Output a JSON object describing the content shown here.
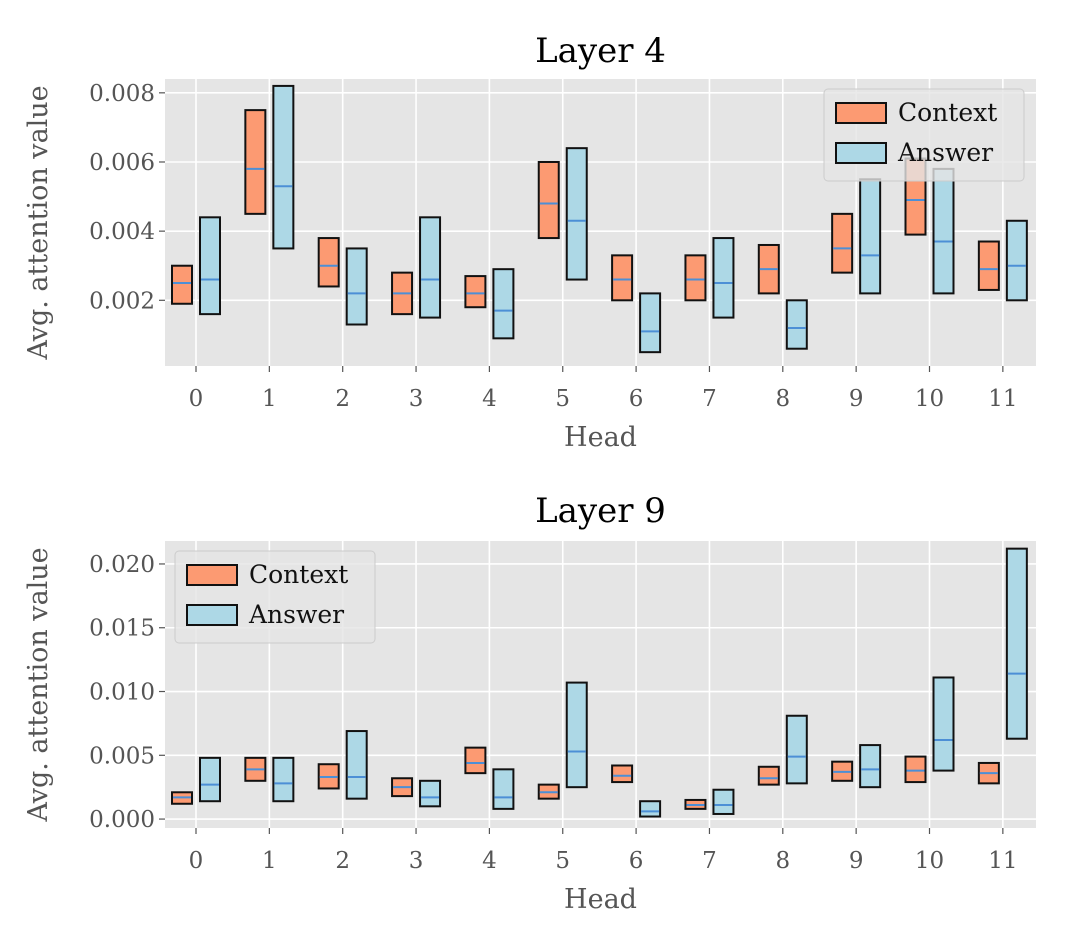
{
  "colors": {
    "context": "#fc9a72",
    "answer": "#add8e6",
    "median": "#4c8fd6",
    "edge": "#111111",
    "panel_bg": "#e5e5e5"
  },
  "chart_data": [
    {
      "type": "box",
      "title": "Layer 4",
      "xlabel": "Head",
      "ylabel": "Avg. attention value",
      "categories": [
        "0",
        "1",
        "2",
        "3",
        "4",
        "5",
        "6",
        "7",
        "8",
        "9",
        "10",
        "11"
      ],
      "ylim": [
        0.0001,
        0.0084
      ],
      "yticks": [
        0.002,
        0.004,
        0.006,
        0.008
      ],
      "ytick_labels": [
        "0.002",
        "0.004",
        "0.006",
        "0.008"
      ],
      "legend": {
        "position": "top-right",
        "labels": [
          "Context",
          "Answer"
        ]
      },
      "series": [
        {
          "name": "Context",
          "low": [
            0.0019,
            0.0045,
            0.0024,
            0.0016,
            0.0018,
            0.0038,
            0.002,
            0.002,
            0.0022,
            0.0028,
            0.0039,
            0.0023
          ],
          "high": [
            0.003,
            0.0075,
            0.0038,
            0.0028,
            0.0027,
            0.006,
            0.0033,
            0.0033,
            0.0036,
            0.0045,
            0.0061,
            0.0037
          ],
          "median": [
            0.0025,
            0.0058,
            0.003,
            0.0022,
            0.0022,
            0.0048,
            0.0026,
            0.0026,
            0.0029,
            0.0035,
            0.0049,
            0.0029
          ]
        },
        {
          "name": "Answer",
          "low": [
            0.0016,
            0.0035,
            0.0013,
            0.0015,
            0.0009,
            0.0026,
            0.0005,
            0.0015,
            0.0006,
            0.0022,
            0.0022,
            0.002
          ],
          "high": [
            0.0044,
            0.0082,
            0.0035,
            0.0044,
            0.0029,
            0.0064,
            0.0022,
            0.0038,
            0.002,
            0.0055,
            0.0058,
            0.0043
          ],
          "median": [
            0.0026,
            0.0053,
            0.0022,
            0.0026,
            0.0017,
            0.0043,
            0.0011,
            0.0025,
            0.0012,
            0.0033,
            0.0037,
            0.003
          ]
        }
      ]
    },
    {
      "type": "box",
      "title": "Layer 9",
      "xlabel": "Head",
      "ylabel": "Avg. attention value",
      "categories": [
        "0",
        "1",
        "2",
        "3",
        "4",
        "5",
        "6",
        "7",
        "8",
        "9",
        "10",
        "11"
      ],
      "ylim": [
        -0.0007,
        0.0218
      ],
      "yticks": [
        0.0,
        0.005,
        0.01,
        0.015,
        0.02
      ],
      "ytick_labels": [
        "0.000",
        "0.005",
        "0.010",
        "0.015",
        "0.020"
      ],
      "legend": {
        "position": "top-left",
        "labels": [
          "Context",
          "Answer"
        ]
      },
      "series": [
        {
          "name": "Context",
          "low": [
            0.0012,
            0.003,
            0.0024,
            0.0018,
            0.0036,
            0.0016,
            0.0029,
            0.0008,
            0.0027,
            0.003,
            0.0029,
            0.0028
          ],
          "high": [
            0.0021,
            0.0048,
            0.0043,
            0.0032,
            0.0056,
            0.0027,
            0.0042,
            0.0015,
            0.0041,
            0.0045,
            0.0049,
            0.0044
          ],
          "median": [
            0.0017,
            0.0039,
            0.0033,
            0.0025,
            0.0044,
            0.0021,
            0.0034,
            0.0011,
            0.0032,
            0.0037,
            0.0038,
            0.0036
          ]
        },
        {
          "name": "Answer",
          "low": [
            0.0014,
            0.0014,
            0.0016,
            0.001,
            0.0008,
            0.0025,
            0.0002,
            0.0004,
            0.0028,
            0.0025,
            0.0038,
            0.0063
          ],
          "high": [
            0.0048,
            0.0048,
            0.0069,
            0.003,
            0.0039,
            0.0107,
            0.0014,
            0.0023,
            0.0081,
            0.0058,
            0.0111,
            0.0212
          ],
          "median": [
            0.0027,
            0.0028,
            0.0033,
            0.0017,
            0.0017,
            0.0053,
            0.0006,
            0.0011,
            0.0049,
            0.0039,
            0.0062,
            0.0114
          ]
        }
      ]
    }
  ]
}
